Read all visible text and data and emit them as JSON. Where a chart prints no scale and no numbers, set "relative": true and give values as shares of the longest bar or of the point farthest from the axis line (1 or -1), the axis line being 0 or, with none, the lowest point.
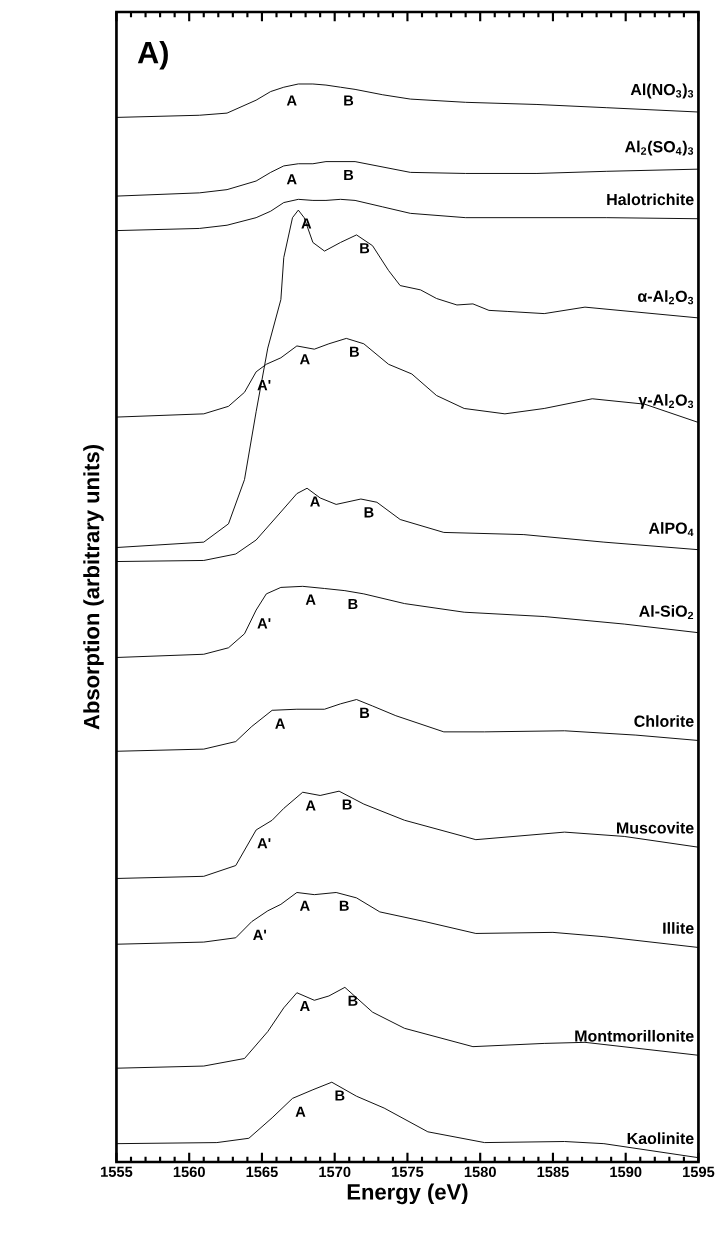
{
  "chart_data": {
    "type": "line",
    "relative": true,
    "xlabel": "Energy (eV)",
    "ylabel": "Absorption (arbitrary units)",
    "xlim": [
      1555,
      1595
    ],
    "xticks": [
      1555,
      1560,
      1565,
      1570,
      1575,
      1580,
      1585,
      1590,
      1595
    ],
    "series": [
      {
        "name": "Al(NO$_{3}$)$_{3}$",
        "color": "#000000",
        "x": [
          1555,
          1560.7,
          1562.6,
          1564.6,
          1565.6,
          1566.5,
          1567.5,
          1568.5,
          1569.4,
          1570.4,
          1571.4,
          1573.3,
          1575.2,
          1579.0,
          1583.9,
          1588.7,
          1595
        ],
        "values": [
          0.969,
          0.971,
          0.973,
          0.985,
          0.993,
          0.997,
          1.0,
          1.0,
          0.999,
          0.997,
          0.995,
          0.99,
          0.986,
          0.983,
          0.981,
          0.978,
          0.974
        ]
      },
      {
        "name": "Al$_{2}$(SO$_{4}$)$_{3}$",
        "color": "#000000",
        "x": [
          1555,
          1560.7,
          1562.6,
          1564.6,
          1565.6,
          1566.5,
          1567.5,
          1568.5,
          1569.4,
          1570.4,
          1571.4,
          1573.3,
          1575.2,
          1579.0,
          1583.9,
          1588.7,
          1595
        ],
        "values": [
          0.896,
          0.899,
          0.902,
          0.91,
          0.918,
          0.924,
          0.926,
          0.926,
          0.928,
          0.928,
          0.928,
          0.923,
          0.918,
          0.917,
          0.917,
          0.919,
          0.921
        ]
      },
      {
        "name": "Halotrichite",
        "color": "#000000",
        "x": [
          1555,
          1560.7,
          1562.6,
          1564.6,
          1565.6,
          1566.5,
          1567.5,
          1568.5,
          1569.4,
          1570.4,
          1571.4,
          1573.3,
          1575.2,
          1579.0,
          1583.9,
          1588.7,
          1595
        ],
        "values": [
          0.864,
          0.866,
          0.869,
          0.876,
          0.882,
          0.89,
          0.893,
          0.892,
          0.892,
          0.893,
          0.892,
          0.886,
          0.88,
          0.876,
          0.876,
          0.876,
          0.875
        ]
      },
      {
        "name": "α-Al$_{2}$O$_{3}$",
        "color": "#000000",
        "x": [
          1555,
          1561.0,
          1562.7,
          1563.8,
          1564.6,
          1565.4,
          1566.3,
          1566.5,
          1567.1,
          1567.5,
          1567.9,
          1568.5,
          1569.3,
          1570.4,
          1571.5,
          1572.6,
          1573.7,
          1574.5,
          1575.9,
          1577.0,
          1578.4,
          1579.5,
          1580.6,
          1581.9,
          1584.4,
          1587.2,
          1595
        ],
        "values": [
          0.57,
          0.575,
          0.592,
          0.633,
          0.696,
          0.755,
          0.8,
          0.839,
          0.876,
          0.883,
          0.876,
          0.853,
          0.845,
          0.853,
          0.86,
          0.85,
          0.827,
          0.813,
          0.809,
          0.801,
          0.795,
          0.796,
          0.79,
          0.789,
          0.787,
          0.793,
          0.783
        ]
      },
      {
        "name": "γ-Al$_{2}$O$_{3}$",
        "color": "#000000",
        "x": [
          1555,
          1561.0,
          1562.7,
          1563.8,
          1564.6,
          1565.3,
          1566.3,
          1567.4,
          1568.6,
          1569.6,
          1570.8,
          1572.0,
          1573.7,
          1575.3,
          1577.0,
          1578.9,
          1581.7,
          1584.4,
          1587.7,
          1591.3,
          1595
        ],
        "values": [
          0.691,
          0.694,
          0.701,
          0.714,
          0.733,
          0.74,
          0.746,
          0.757,
          0.754,
          0.759,
          0.764,
          0.759,
          0.74,
          0.731,
          0.711,
          0.699,
          0.694,
          0.699,
          0.708,
          0.703,
          0.686
        ]
      },
      {
        "name": "AlPO$_{4}$",
        "color": "#000000",
        "x": [
          1555,
          1561.0,
          1563.2,
          1564.6,
          1566.3,
          1567.4,
          1568.1,
          1569.0,
          1570.1,
          1571.8,
          1572.9,
          1574.5,
          1577.5,
          1583.0,
          1588.5,
          1595
        ],
        "values": [
          0.557,
          0.558,
          0.564,
          0.577,
          0.603,
          0.62,
          0.625,
          0.616,
          0.61,
          0.615,
          0.612,
          0.596,
          0.584,
          0.582,
          0.575,
          0.568
        ]
      },
      {
        "name": "Al-SiO$_{2}$",
        "color": "#000000",
        "x": [
          1555,
          1561.0,
          1562.7,
          1563.8,
          1564.6,
          1565.3,
          1566.3,
          1567.8,
          1569.3,
          1570.7,
          1572.0,
          1574.8,
          1578.9,
          1584.4,
          1589.9,
          1595
        ],
        "values": [
          0.468,
          0.471,
          0.477,
          0.49,
          0.512,
          0.527,
          0.533,
          0.534,
          0.532,
          0.53,
          0.527,
          0.518,
          0.51,
          0.506,
          0.499,
          0.491
        ]
      },
      {
        "name": "Chlorite",
        "color": "#000000",
        "x": [
          1555,
          1561.0,
          1563.2,
          1564.3,
          1565.7,
          1567.4,
          1569.3,
          1570.4,
          1571.5,
          1572.6,
          1574.2,
          1577.5,
          1580.3,
          1585.8,
          1590.7,
          1595
        ],
        "values": [
          0.381,
          0.383,
          0.39,
          0.404,
          0.419,
          0.42,
          0.42,
          0.425,
          0.429,
          0.423,
          0.414,
          0.399,
          0.399,
          0.4,
          0.396,
          0.391
        ]
      },
      {
        "name": "Muscovite",
        "color": "#000000",
        "x": [
          1555,
          1561.0,
          1563.2,
          1564.6,
          1565.7,
          1566.5,
          1567.8,
          1569.0,
          1570.3,
          1572.0,
          1574.8,
          1579.7,
          1585.8,
          1589.9,
          1595
        ],
        "values": [
          0.263,
          0.265,
          0.275,
          0.308,
          0.317,
          0.328,
          0.343,
          0.34,
          0.344,
          0.332,
          0.317,
          0.299,
          0.306,
          0.302,
          0.292
        ]
      },
      {
        "name": "Illite",
        "color": "#000000",
        "x": [
          1555,
          1561.0,
          1563.2,
          1564.3,
          1565.4,
          1566.3,
          1567.4,
          1568.6,
          1570.1,
          1571.5,
          1573.1,
          1576.2,
          1579.7,
          1585.0,
          1588.5,
          1595
        ],
        "values": [
          0.202,
          0.204,
          0.208,
          0.223,
          0.233,
          0.239,
          0.25,
          0.248,
          0.25,
          0.245,
          0.232,
          0.223,
          0.212,
          0.213,
          0.209,
          0.199
        ]
      },
      {
        "name": "Montmorillonite",
        "color": "#000000",
        "x": [
          1555,
          1561.0,
          1563.8,
          1565.4,
          1566.5,
          1567.4,
          1568.6,
          1569.6,
          1570.7,
          1572.6,
          1574.8,
          1579.5,
          1584.4,
          1587.2,
          1595
        ],
        "values": [
          0.087,
          0.089,
          0.096,
          0.121,
          0.143,
          0.157,
          0.15,
          0.154,
          0.162,
          0.139,
          0.124,
          0.107,
          0.11,
          0.111,
          0.099
        ]
      },
      {
        "name": "Kaolinite",
        "color": "#000000",
        "x": [
          1555,
          1561.9,
          1564.1,
          1565.7,
          1567.1,
          1568.5,
          1569.8,
          1571.5,
          1573.4,
          1576.4,
          1580.3,
          1585.8,
          1588.5,
          1595
        ],
        "values": [
          0.017,
          0.018,
          0.022,
          0.041,
          0.059,
          0.067,
          0.074,
          0.061,
          0.05,
          0.028,
          0.018,
          0.019,
          0.017,
          0.004
        ]
      }
    ],
    "annotations": [
      "A)",
      {
        "text": "A",
        "x": 1566.5,
        "y": 0.997
      },
      {
        "text": "B",
        "x": 1570.4,
        "y": 0.997
      },
      {
        "text": "A",
        "x": 1566.5,
        "y": 0.924
      },
      {
        "text": "B",
        "x": 1570.4,
        "y": 0.928
      },
      {
        "text": "A",
        "x": 1567.5,
        "y": 0.883
      },
      {
        "text": "B",
        "x": 1571.5,
        "y": 0.86
      },
      {
        "text": "A'",
        "x": 1564.6,
        "y": 0.733
      },
      {
        "text": "A",
        "x": 1567.4,
        "y": 0.757
      },
      {
        "text": "B",
        "x": 1570.8,
        "y": 0.764
      },
      {
        "text": "A",
        "x": 1568.1,
        "y": 0.625
      },
      {
        "text": "B",
        "x": 1571.8,
        "y": 0.615
      },
      {
        "text": "A'",
        "x": 1564.6,
        "y": 0.512
      },
      {
        "text": "A",
        "x": 1567.8,
        "y": 0.534
      },
      {
        "text": "B",
        "x": 1570.7,
        "y": 0.53
      },
      {
        "text": "A",
        "x": 1565.7,
        "y": 0.419
      },
      {
        "text": "B",
        "x": 1571.5,
        "y": 0.429
      },
      {
        "text": "A'",
        "x": 1564.6,
        "y": 0.308
      },
      {
        "text": "A",
        "x": 1567.8,
        "y": 0.343
      },
      {
        "text": "B",
        "x": 1570.3,
        "y": 0.344
      },
      {
        "text": "A'",
        "x": 1564.3,
        "y": 0.223
      },
      {
        "text": "A",
        "x": 1567.4,
        "y": 0.25
      },
      {
        "text": "B",
        "x": 1570.1,
        "y": 0.25
      },
      {
        "text": "A",
        "x": 1567.4,
        "y": 0.157
      },
      {
        "text": "B",
        "x": 1570.7,
        "y": 0.162
      },
      {
        "text": "A",
        "x": 1567.1,
        "y": 0.059
      },
      {
        "text": "B",
        "x": 1569.8,
        "y": 0.074
      }
    ]
  }
}
